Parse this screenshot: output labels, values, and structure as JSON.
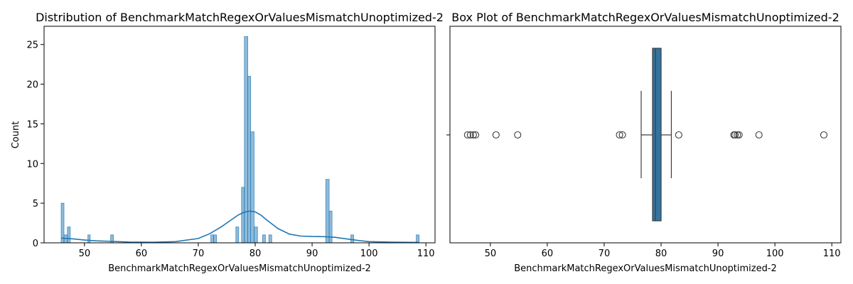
{
  "colors": {
    "hist_fill": "#1f77b4",
    "kde_line": "#1f77b4",
    "box_fill": "#3274a1",
    "outline": "#3d3d3d",
    "axis": "#000000"
  },
  "chart_data": [
    {
      "type": "histogram",
      "title": "Distribution of BenchmarkMatchRegexOrValuesMismatchUnoptimized-2",
      "xlabel": "BenchmarkMatchRegexOrValuesMismatchUnoptimized-2",
      "ylabel": "Count",
      "xlim": [
        42.9,
        111.6
      ],
      "ylim": [
        0,
        27.3
      ],
      "xticks": [
        50,
        60,
        70,
        80,
        90,
        100,
        110
      ],
      "yticks": [
        0,
        5,
        10,
        15,
        20,
        25
      ],
      "bins": [
        {
          "x0": 45.9,
          "x1": 46.4,
          "count": 5
        },
        {
          "x0": 46.4,
          "x1": 47.0,
          "count": 1
        },
        {
          "x0": 47.0,
          "x1": 47.5,
          "count": 2
        },
        {
          "x0": 50.6,
          "x1": 51.0,
          "count": 1
        },
        {
          "x0": 54.6,
          "x1": 55.1,
          "count": 1
        },
        {
          "x0": 72.2,
          "x1": 72.7,
          "count": 1
        },
        {
          "x0": 72.7,
          "x1": 73.2,
          "count": 1
        },
        {
          "x0": 76.6,
          "x1": 77.1,
          "count": 2
        },
        {
          "x0": 77.6,
          "x1": 78.1,
          "count": 7
        },
        {
          "x0": 78.1,
          "x1": 78.7,
          "count": 26
        },
        {
          "x0": 78.7,
          "x1": 79.2,
          "count": 21
        },
        {
          "x0": 79.2,
          "x1": 79.8,
          "count": 14
        },
        {
          "x0": 79.8,
          "x1": 80.4,
          "count": 2
        },
        {
          "x0": 81.3,
          "x1": 81.8,
          "count": 1
        },
        {
          "x0": 82.4,
          "x1": 82.9,
          "count": 1
        },
        {
          "x0": 92.4,
          "x1": 93.0,
          "count": 8
        },
        {
          "x0": 93.0,
          "x1": 93.5,
          "count": 4
        },
        {
          "x0": 96.8,
          "x1": 97.3,
          "count": 1
        },
        {
          "x0": 108.3,
          "x1": 108.8,
          "count": 1
        }
      ],
      "kde": {
        "x": [
          45.9,
          48,
          50,
          52,
          55,
          58,
          62,
          66,
          70,
          72,
          74,
          76,
          77,
          78,
          79,
          80,
          81,
          82,
          84,
          86,
          88,
          90,
          92,
          94,
          96,
          98,
          100,
          104,
          108.8
        ],
        "y": [
          0.6,
          0.5,
          0.35,
          0.25,
          0.18,
          0.1,
          0.07,
          0.15,
          0.55,
          1.15,
          2.0,
          3.0,
          3.5,
          3.85,
          4.0,
          3.9,
          3.5,
          2.9,
          1.8,
          1.1,
          0.85,
          0.8,
          0.78,
          0.7,
          0.5,
          0.3,
          0.15,
          0.08,
          0.05
        ]
      }
    },
    {
      "type": "box",
      "title": "Box Plot of BenchmarkMatchRegexOrValuesMismatchUnoptimized-2",
      "xlabel": "BenchmarkMatchRegexOrValuesMismatchUnoptimized-2",
      "xlim": [
        42.9,
        111.6
      ],
      "xticks": [
        50,
        60,
        70,
        80,
        90,
        100,
        110
      ],
      "whisker_low": 76.5,
      "q1": 78.5,
      "median": 79.0,
      "q3": 80.0,
      "whisker_high": 81.8,
      "outliers": [
        46.0,
        46.5,
        47.0,
        47.4,
        51.0,
        54.8,
        72.7,
        73.2,
        83.1,
        92.8,
        93.0,
        93.4,
        93.7,
        97.2,
        108.6
      ]
    }
  ]
}
